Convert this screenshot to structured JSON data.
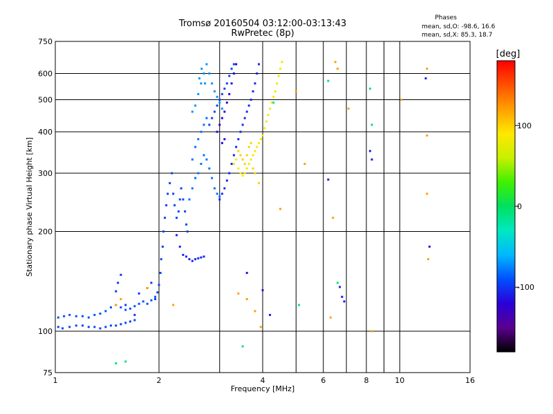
{
  "chart_data": {
    "type": "scatter",
    "title": "Tromsø 20160504 03:12:00-03:13:43",
    "subtitle": "RwPretec (8p)",
    "xlabel": "Frequency [MHz]",
    "ylabel": "Stationary phase Virtual Height [km]",
    "x_scale": "log",
    "y_scale": "log",
    "xlim": [
      1,
      16
    ],
    "ylim": [
      75,
      750
    ],
    "x_ticks": [
      1,
      2,
      4,
      6,
      8,
      10,
      16
    ],
    "x_tick_labels": [
      "1",
      "2",
      "4",
      "6",
      "8",
      "10",
      "16"
    ],
    "x_minor_gridlines": [
      3,
      5,
      7,
      9
    ],
    "y_ticks": [
      75,
      100,
      200,
      300,
      400,
      500,
      600,
      750
    ],
    "y_tick_labels": [
      "75",
      "100",
      "200",
      "300",
      "400",
      "500",
      "600",
      "750"
    ],
    "y_minor_gridlines": [],
    "grid": true,
    "phase_legend": {
      "title": "Phases",
      "line1": "mean, sd,O: -98.6, 16.6",
      "line2": "mean, sd,X:  85.3, 18.7"
    },
    "colorbar": {
      "label": "[deg]",
      "range": [
        -180,
        180
      ],
      "ticks": [
        100,
        0,
        -100
      ],
      "tick_labels": [
        "100",
        "0",
        "-100"
      ],
      "colors": [
        "#000000",
        "#5a0090",
        "#2a00d8",
        "#0050ff",
        "#00b8ff",
        "#00e8c0",
        "#00e060",
        "#40f000",
        "#c8f000",
        "#ffe800",
        "#ffa000",
        "#ff5000",
        "#ff0000"
      ]
    },
    "series": [
      {
        "phase": -95,
        "points": [
          [
            1.02,
            103
          ],
          [
            1.05,
            102
          ],
          [
            1.1,
            103
          ],
          [
            1.15,
            104
          ],
          [
            1.2,
            104
          ],
          [
            1.25,
            103
          ],
          [
            1.3,
            103
          ],
          [
            1.35,
            102
          ],
          [
            1.4,
            103
          ],
          [
            1.45,
            104
          ],
          [
            1.5,
            104
          ],
          [
            1.55,
            105
          ],
          [
            1.6,
            106
          ],
          [
            1.65,
            107
          ],
          [
            1.7,
            108
          ]
        ]
      },
      {
        "phase": -90,
        "points": [
          [
            1.02,
            110
          ],
          [
            1.06,
            111
          ],
          [
            1.1,
            112
          ],
          [
            1.15,
            111
          ],
          [
            1.2,
            111
          ],
          [
            1.25,
            110
          ],
          [
            1.3,
            112
          ],
          [
            1.35,
            113
          ],
          [
            1.4,
            115
          ],
          [
            1.45,
            118
          ],
          [
            1.5,
            120
          ],
          [
            1.55,
            118
          ],
          [
            1.6,
            116
          ],
          [
            1.65,
            117
          ],
          [
            1.7,
            119
          ],
          [
            1.75,
            121
          ],
          [
            1.8,
            123
          ],
          [
            1.85,
            121
          ],
          [
            1.9,
            124
          ],
          [
            1.95,
            127
          ]
        ]
      },
      {
        "phase": -100,
        "points": [
          [
            1.5,
            132
          ],
          [
            1.52,
            140
          ],
          [
            1.55,
            148
          ],
          [
            1.6,
            120
          ],
          [
            1.7,
            112
          ],
          [
            1.75,
            130
          ],
          [
            1.85,
            135
          ],
          [
            1.9,
            140
          ]
        ]
      },
      {
        "phase": -95,
        "points": [
          [
            1.95,
            125
          ],
          [
            1.98,
            131
          ],
          [
            2.0,
            138
          ],
          [
            2.02,
            150
          ],
          [
            2.03,
            165
          ],
          [
            2.05,
            180
          ],
          [
            2.06,
            200
          ],
          [
            2.08,
            220
          ],
          [
            2.1,
            240
          ],
          [
            2.12,
            260
          ],
          [
            2.15,
            280
          ],
          [
            2.18,
            300
          ],
          [
            2.2,
            260
          ],
          [
            2.22,
            240
          ],
          [
            2.25,
            220
          ],
          [
            2.28,
            230
          ],
          [
            2.3,
            250
          ],
          [
            2.32,
            270
          ],
          [
            2.35,
            250
          ],
          [
            2.38,
            230
          ],
          [
            2.4,
            210
          ],
          [
            2.42,
            200
          ]
        ]
      },
      {
        "phase": -105,
        "points": [
          [
            2.25,
            195
          ],
          [
            2.3,
            180
          ],
          [
            2.35,
            170
          ],
          [
            2.4,
            168
          ],
          [
            2.45,
            165
          ],
          [
            2.5,
            163
          ],
          [
            2.55,
            165
          ],
          [
            2.6,
            166
          ],
          [
            2.65,
            167
          ],
          [
            2.7,
            168
          ]
        ]
      },
      {
        "phase": -80,
        "points": [
          [
            2.45,
            250
          ],
          [
            2.5,
            270
          ],
          [
            2.55,
            290
          ],
          [
            2.6,
            300
          ],
          [
            2.65,
            320
          ],
          [
            2.7,
            340
          ],
          [
            2.75,
            330
          ],
          [
            2.8,
            310
          ],
          [
            2.85,
            290
          ],
          [
            2.9,
            270
          ],
          [
            2.95,
            260
          ],
          [
            3.0,
            255
          ],
          [
            2.5,
            330
          ],
          [
            2.55,
            360
          ],
          [
            2.6,
            380
          ],
          [
            2.65,
            400
          ],
          [
            2.7,
            420
          ],
          [
            2.75,
            440
          ]
        ]
      },
      {
        "phase": -70,
        "points": [
          [
            2.5,
            460
          ],
          [
            2.55,
            480
          ],
          [
            2.6,
            520
          ],
          [
            2.65,
            560
          ],
          [
            2.7,
            600
          ],
          [
            2.75,
            640
          ],
          [
            2.8,
            600
          ],
          [
            2.85,
            560
          ],
          [
            2.9,
            530
          ],
          [
            2.95,
            510
          ],
          [
            3.0,
            490
          ],
          [
            3.05,
            470
          ],
          [
            2.62,
            580
          ],
          [
            2.66,
            620
          ],
          [
            2.72,
            560
          ]
        ]
      },
      {
        "phase": -95,
        "points": [
          [
            2.8,
            420
          ],
          [
            2.85,
            440
          ],
          [
            2.9,
            460
          ],
          [
            2.95,
            480
          ],
          [
            3.0,
            500
          ],
          [
            3.05,
            520
          ],
          [
            3.1,
            540
          ],
          [
            3.15,
            560
          ],
          [
            3.2,
            590
          ],
          [
            3.25,
            620
          ],
          [
            3.3,
            640
          ]
        ]
      },
      {
        "phase": -120,
        "points": [
          [
            2.95,
            400
          ],
          [
            3.0,
            420
          ],
          [
            3.05,
            440
          ],
          [
            3.1,
            460
          ],
          [
            3.15,
            490
          ],
          [
            3.2,
            520
          ],
          [
            3.25,
            560
          ],
          [
            3.3,
            600
          ],
          [
            3.35,
            640
          ],
          [
            3.1,
            380
          ],
          [
            3.05,
            370
          ]
        ]
      },
      {
        "phase": -105,
        "points": [
          [
            3.0,
            250
          ],
          [
            3.05,
            260
          ],
          [
            3.1,
            270
          ],
          [
            3.15,
            285
          ],
          [
            3.2,
            300
          ],
          [
            3.25,
            320
          ],
          [
            3.3,
            340
          ],
          [
            3.35,
            360
          ],
          [
            3.4,
            380
          ],
          [
            3.45,
            400
          ],
          [
            3.5,
            420
          ],
          [
            3.55,
            440
          ],
          [
            3.6,
            460
          ],
          [
            3.65,
            480
          ],
          [
            3.7,
            500
          ],
          [
            3.75,
            530
          ],
          [
            3.8,
            560
          ],
          [
            3.85,
            600
          ],
          [
            3.9,
            640
          ]
        ]
      },
      {
        "phase": 85,
        "points": [
          [
            3.3,
            320
          ],
          [
            3.35,
            330
          ],
          [
            3.4,
            310
          ],
          [
            3.45,
            300
          ],
          [
            3.5,
            295
          ],
          [
            3.55,
            300
          ],
          [
            3.6,
            310
          ],
          [
            3.65,
            320
          ],
          [
            3.7,
            330
          ],
          [
            3.75,
            340
          ],
          [
            3.8,
            350
          ],
          [
            3.85,
            360
          ],
          [
            3.9,
            370
          ],
          [
            3.95,
            380
          ],
          [
            4.0,
            390
          ],
          [
            4.05,
            410
          ],
          [
            4.1,
            430
          ],
          [
            4.15,
            450
          ],
          [
            4.2,
            470
          ],
          [
            4.25,
            490
          ],
          [
            4.3,
            510
          ],
          [
            4.35,
            530
          ],
          [
            4.4,
            560
          ],
          [
            4.45,
            590
          ],
          [
            4.5,
            620
          ],
          [
            4.55,
            650
          ]
        ]
      },
      {
        "phase": 100,
        "points": [
          [
            3.4,
            350
          ],
          [
            3.45,
            340
          ],
          [
            3.5,
            330
          ],
          [
            3.55,
            320
          ],
          [
            3.6,
            340
          ],
          [
            3.65,
            360
          ],
          [
            3.7,
            370
          ],
          [
            3.75,
            310
          ],
          [
            3.8,
            300
          ],
          [
            3.9,
            280
          ]
        ]
      },
      {
        "phase": 120,
        "points": [
          [
            1.5,
            120
          ],
          [
            1.55,
            125
          ],
          [
            1.85,
            135
          ],
          [
            2.2,
            120
          ],
          [
            3.4,
            130
          ],
          [
            3.6,
            125
          ],
          [
            3.8,
            115
          ],
          [
            3.95,
            103
          ],
          [
            4.5,
            234
          ],
          [
            5.0,
            530
          ],
          [
            5.3,
            320
          ],
          [
            6.3,
            110
          ],
          [
            6.4,
            220
          ],
          [
            6.5,
            650
          ],
          [
            6.6,
            620
          ],
          [
            7.1,
            470
          ],
          [
            8.3,
            100
          ],
          [
            10.1,
            500
          ],
          [
            12.0,
            620
          ],
          [
            12.0,
            390
          ],
          [
            12.0,
            260
          ],
          [
            12.1,
            165
          ]
        ]
      },
      {
        "phase": -110,
        "points": [
          [
            3.6,
            150
          ],
          [
            4.0,
            133
          ],
          [
            4.2,
            112
          ],
          [
            6.2,
            287
          ],
          [
            6.7,
            136
          ],
          [
            6.9,
            123
          ],
          [
            6.8,
            127
          ],
          [
            8.2,
            350
          ],
          [
            8.3,
            330
          ],
          [
            11.9,
            580
          ],
          [
            12.2,
            180
          ]
        ]
      },
      {
        "phase": -10,
        "points": [
          [
            1.5,
            80
          ],
          [
            1.6,
            81
          ],
          [
            3.5,
            90
          ],
          [
            4.3,
            490
          ],
          [
            5.1,
            120
          ],
          [
            6.2,
            570
          ],
          [
            6.6,
            140
          ],
          [
            8.2,
            540
          ],
          [
            8.3,
            420
          ]
        ]
      }
    ]
  }
}
